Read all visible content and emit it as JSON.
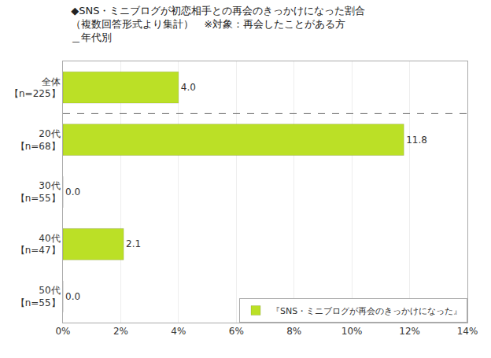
{
  "chart_data": {
    "type": "bar",
    "orientation": "horizontal",
    "title": "◆SNS・ミニブログが初恋相手との再会のきっかけになった割合\n（複数回答形式より集計）　※対象：再会したことがある方\n＿年代別",
    "categories": [
      "全体\n【n=225】",
      "20代\n【n=68】",
      "30代\n【n=55】",
      "40代\n【n=47】",
      "50代\n【n=55】"
    ],
    "series": [
      {
        "name": "『SNS・ミニブログが再会のきっかけになった』",
        "color": "#bbe026",
        "values": [
          4.0,
          11.8,
          0.0,
          2.1,
          0.0
        ],
        "value_labels": [
          "4.0",
          "11.8",
          "0.0",
          "2.1",
          "0.0"
        ]
      }
    ],
    "data_labels": true,
    "xlim": [
      0,
      14
    ],
    "xticks": [
      {
        "value": 0,
        "label": "0%"
      },
      {
        "value": 2,
        "label": "2%"
      },
      {
        "value": 4,
        "label": "4%"
      },
      {
        "value": 6,
        "label": "6%"
      },
      {
        "value": 8,
        "label": "8%"
      },
      {
        "value": 10,
        "label": "10%"
      },
      {
        "value": 12,
        "label": "12%"
      },
      {
        "value": 14,
        "label": "14%"
      }
    ],
    "grid": true,
    "legend": "lower right"
  }
}
